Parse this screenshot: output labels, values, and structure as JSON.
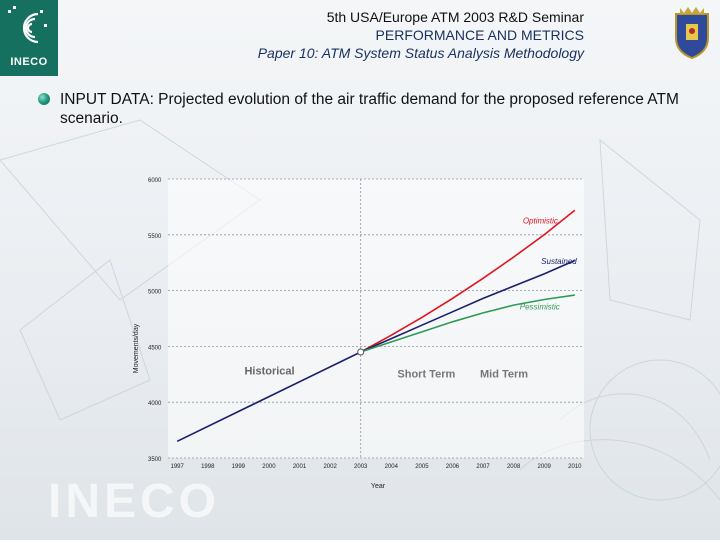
{
  "header": {
    "logo_text": "INECO",
    "line1": "5th USA/Europe ATM 2003 R&D Seminar",
    "line2": "PERFORMANCE AND METRICS",
    "line3": "Paper 10: ATM System Status Analysis Methodology"
  },
  "body_text": "INPUT DATA: Projected evolution of the air traffic demand for the proposed reference ATM scenario.",
  "watermark": "INECO",
  "colors": {
    "logo_green": "#16705f",
    "historical": "#1a1f6e",
    "optimistic": "#e0141e",
    "sustained": "#1a1f6e",
    "pessimistic": "#2e9a55"
  },
  "chart_data": {
    "type": "line",
    "xlabel": "Year",
    "ylabel": "Movements/day",
    "xlim": [
      1996.7,
      2010.3
    ],
    "ylim": [
      3500,
      6000
    ],
    "x_ticks": [
      1997,
      1998,
      1999,
      2000,
      2001,
      2002,
      2003,
      2004,
      2005,
      2006,
      2007,
      2008,
      2009,
      2010
    ],
    "y_ticks": [
      3500,
      4000,
      4500,
      5000,
      5500,
      6000
    ],
    "grid": "dashed horizontal",
    "series": [
      {
        "name": "Historical",
        "x": [
          1997,
          2003
        ],
        "y": [
          3650,
          4450
        ]
      },
      {
        "name": "Optimistic",
        "x": [
          2003,
          2004,
          2005,
          2006,
          2007,
          2008,
          2009,
          2010
        ],
        "y": [
          4450,
          4600,
          4760,
          4930,
          5110,
          5300,
          5500,
          5720
        ]
      },
      {
        "name": "Sustained",
        "x": [
          2003,
          2004,
          2005,
          2006,
          2007,
          2008,
          2009,
          2010
        ],
        "y": [
          4450,
          4570,
          4690,
          4810,
          4930,
          5040,
          5150,
          5270
        ]
      },
      {
        "name": "Pessimistic",
        "x": [
          2003,
          2004,
          2005,
          2006,
          2007,
          2008,
          2009,
          2010
        ],
        "y": [
          4450,
          4540,
          4630,
          4720,
          4800,
          4870,
          4920,
          4960
        ]
      }
    ],
    "annotations": [
      {
        "text": "Optimistic",
        "x": 2008.3,
        "y": 5600,
        "color": "#e0141e"
      },
      {
        "text": "Sustained",
        "x": 2008.9,
        "y": 5240,
        "color": "#1a1f6e"
      },
      {
        "text": "Pessimistic",
        "x": 2008.2,
        "y": 4830,
        "color": "#2e9a55"
      },
      {
        "text": "Historical",
        "x": 1999.2,
        "y": 4250,
        "color": "#666666"
      },
      {
        "text": "Short Term",
        "x": 2004.2,
        "y": 4220,
        "color": "#777777"
      },
      {
        "text": "Mid Term",
        "x": 2006.9,
        "y": 4220,
        "color": "#777777"
      }
    ],
    "marker": {
      "x": 2003,
      "y": 4450
    }
  }
}
